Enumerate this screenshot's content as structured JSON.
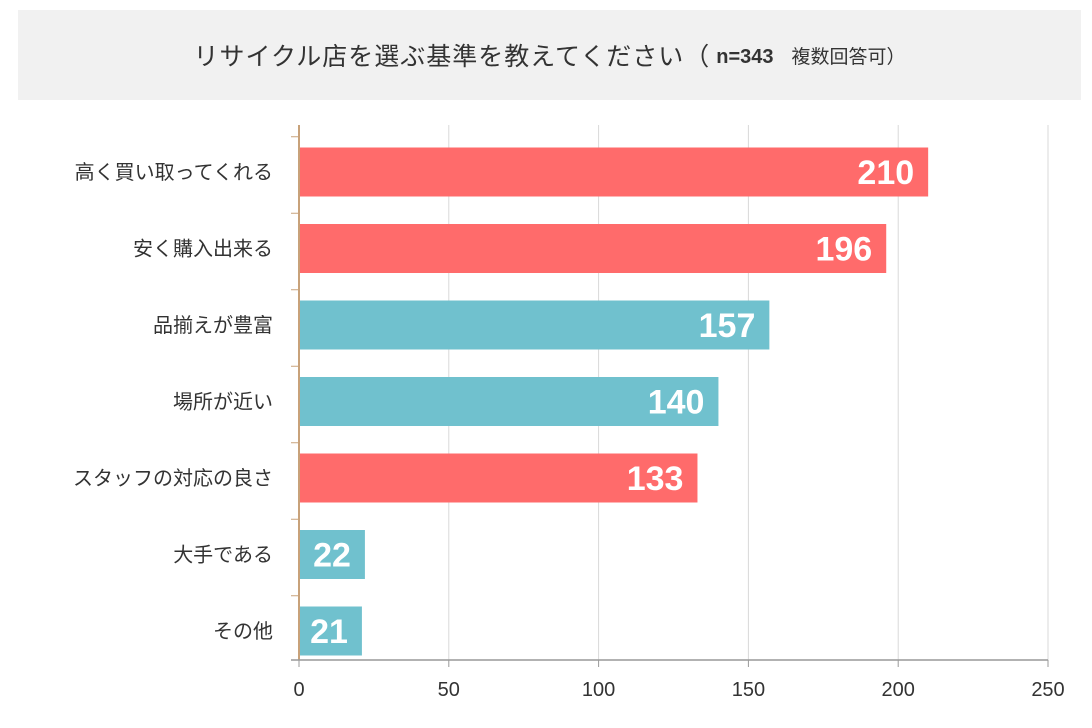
{
  "header": {
    "title": "リサイクル店を選ぶ基準を教えてください（",
    "n_label": "n=343",
    "multi_label": "複数回答可）"
  },
  "chart_data": {
    "type": "bar",
    "orientation": "horizontal",
    "title": "リサイクル店を選ぶ基準を教えてください（n=343　複数回答可）",
    "categories": [
      "高く買い取ってくれる",
      "安く購入出来る",
      "品揃えが豊富",
      "場所が近い",
      "スタッフの対応の良さ",
      "大手である",
      "その他"
    ],
    "values": [
      210,
      196,
      157,
      140,
      133,
      22,
      21
    ],
    "bar_colors": [
      "#ff6b6b",
      "#ff6b6b",
      "#70c1ce",
      "#70c1ce",
      "#ff6b6b",
      "#70c1ce",
      "#70c1ce"
    ],
    "xlim": [
      0,
      250
    ],
    "xticks": [
      0,
      50,
      100,
      150,
      200,
      250
    ],
    "grid": true,
    "data_labels": true
  },
  "colors": {
    "red": "#ff6b6b",
    "blue": "#70c1ce",
    "grid": "#d9d9d9",
    "axis_tick": "#c8a27a"
  }
}
